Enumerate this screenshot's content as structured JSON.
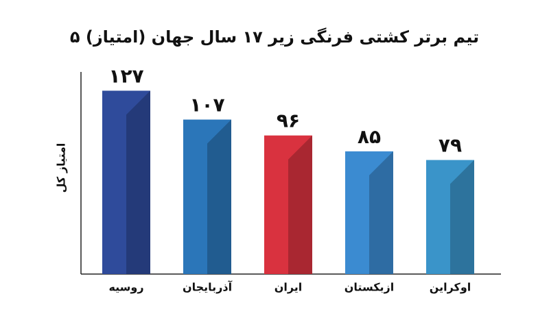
{
  "chart_data": {
    "type": "bar",
    "title": "۵ تیم برتر کشتی فرنگی زیر ۱۷ سال جهان (امتیاز)",
    "y_label": "امتیاز کل",
    "categories": [
      "روسیه",
      "آذربایجان",
      "ایران",
      "ازبکستان",
      "اوکراین"
    ],
    "values": [
      127,
      107,
      96,
      85,
      79
    ],
    "value_labels": [
      "۱۲۷",
      "۱۰۷",
      "۹۶",
      "۸۵",
      "۷۹"
    ],
    "colors": [
      "#2f4b9b",
      "#2b76b9",
      "#d9323f",
      "#3b8bd1",
      "#3a94c9"
    ],
    "ylim": [
      0,
      140
    ]
  }
}
